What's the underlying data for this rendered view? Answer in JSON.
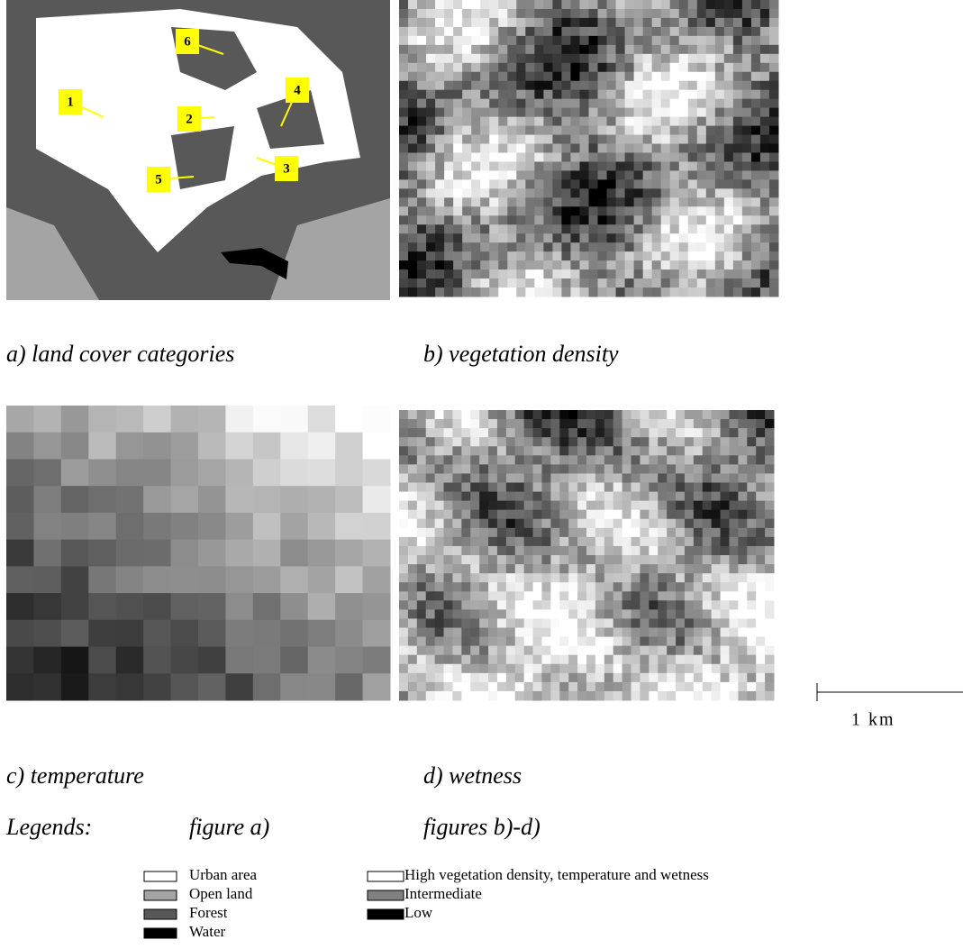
{
  "panels": [
    {
      "caption": "a) land cover categories",
      "markers": [
        "1",
        "2",
        "3",
        "4",
        "5",
        "6"
      ]
    },
    {
      "caption": "b) vegetation density"
    },
    {
      "caption": "c) temperature"
    },
    {
      "caption": "d) wetness"
    }
  ],
  "scale_bar": "1 km",
  "legends": {
    "title": "Legends:",
    "figure_a": {
      "title": "figure a)",
      "items": [
        "Urban area",
        "Open land",
        "Forest",
        "Water"
      ]
    },
    "figures_bd": {
      "title": "figures b)-d)",
      "items": [
        "High vegetation density, temperature and wetness",
        "Intermediate",
        "Low"
      ]
    }
  }
}
